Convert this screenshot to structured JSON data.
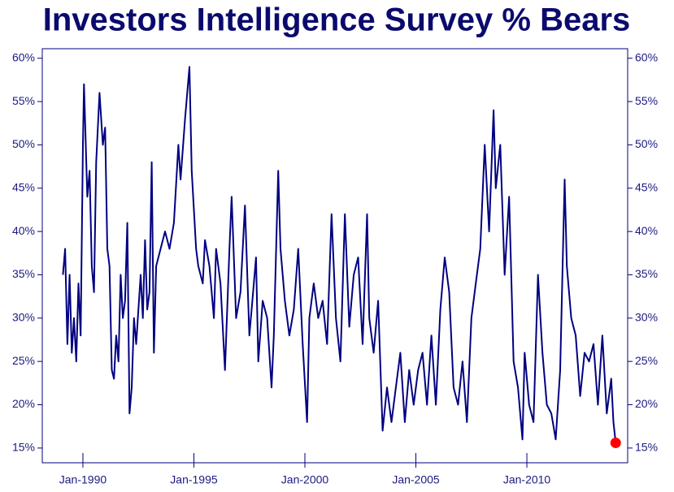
{
  "chart_data": {
    "type": "line",
    "title": "Investors Intelligence Survey % Bears",
    "color": "#000080",
    "last_point_color": "#ff0000",
    "xlim": [
      1988.17,
      2014.54
    ],
    "ylim": [
      13.3,
      61.1
    ],
    "xticks": [
      {
        "value": 1990,
        "label": "Jan-1990"
      },
      {
        "value": 1995,
        "label": "Jan-1995"
      },
      {
        "value": 2000,
        "label": "Jan-2000"
      },
      {
        "value": 2005,
        "label": "Jan-2005"
      },
      {
        "value": 2010,
        "label": "Jan-2010"
      }
    ],
    "yticks": [
      {
        "value": 15,
        "label": "15%"
      },
      {
        "value": 20,
        "label": "20%"
      },
      {
        "value": 25,
        "label": "25%"
      },
      {
        "value": 30,
        "label": "30%"
      },
      {
        "value": 35,
        "label": "35%"
      },
      {
        "value": 40,
        "label": "40%"
      },
      {
        "value": 45,
        "label": "45%"
      },
      {
        "value": 50,
        "label": "50%"
      },
      {
        "value": 55,
        "label": "55%"
      },
      {
        "value": 60,
        "label": "60%"
      }
    ],
    "series": [
      {
        "name": "% Bears",
        "color": "#000080",
        "x": [
          1989.1,
          1989.2,
          1989.3,
          1989.4,
          1989.5,
          1989.6,
          1989.7,
          1989.8,
          1989.9,
          1990.0,
          1990.05,
          1990.2,
          1990.3,
          1990.4,
          1990.5,
          1990.6,
          1990.75,
          1990.9,
          1991.0,
          1991.1,
          1991.2,
          1991.3,
          1991.4,
          1991.5,
          1991.6,
          1991.7,
          1991.8,
          1991.9,
          1992.0,
          1992.1,
          1992.2,
          1992.3,
          1992.4,
          1992.6,
          1992.7,
          1992.8,
          1992.9,
          1993.0,
          1993.1,
          1993.2,
          1993.3,
          1993.5,
          1993.7,
          1993.9,
          1994.1,
          1994.3,
          1994.4,
          1994.6,
          1994.8,
          1994.9,
          1995.1,
          1995.2,
          1995.4,
          1995.5,
          1995.7,
          1995.9,
          1996.0,
          1996.2,
          1996.4,
          1996.6,
          1996.7,
          1996.9,
          1997.1,
          1997.3,
          1997.5,
          1997.6,
          1997.8,
          1997.9,
          1998.1,
          1998.3,
          1998.5,
          1998.6,
          1998.8,
          1998.9,
          1999.1,
          1999.3,
          1999.5,
          1999.7,
          1999.9,
          2000.1,
          2000.2,
          2000.4,
          2000.6,
          2000.8,
          2001.0,
          2001.2,
          2001.4,
          2001.6,
          2001.8,
          2002.0,
          2002.2,
          2002.4,
          2002.6,
          2002.8,
          2002.9,
          2003.1,
          2003.3,
          2003.5,
          2003.7,
          2003.9,
          2004.1,
          2004.3,
          2004.5,
          2004.7,
          2004.9,
          2005.1,
          2005.3,
          2005.5,
          2005.7,
          2005.9,
          2006.1,
          2006.3,
          2006.5,
          2006.7,
          2006.9,
          2007.1,
          2007.3,
          2007.5,
          2007.7,
          2007.9,
          2008.1,
          2008.3,
          2008.5,
          2008.6,
          2008.8,
          2009.0,
          2009.2,
          2009.4,
          2009.6,
          2009.8,
          2009.9,
          2010.1,
          2010.3,
          2010.5,
          2010.7,
          2010.9,
          2011.1,
          2011.3,
          2011.5,
          2011.7,
          2011.8,
          2012.0,
          2012.2,
          2012.4,
          2012.6,
          2012.8,
          2013.0,
          2013.2,
          2013.4,
          2013.6,
          2013.8,
          2013.9,
          2014.0
        ],
        "values": [
          35,
          38,
          27,
          35,
          26,
          30,
          25,
          34,
          28,
          50,
          57,
          44,
          47,
          36,
          33,
          48,
          56,
          50,
          52,
          38,
          36,
          24,
          23,
          28,
          25,
          35,
          30,
          32,
          41,
          19,
          22,
          30,
          27,
          35,
          30,
          39,
          31,
          33,
          48,
          26,
          36,
          38,
          40,
          38,
          41,
          50,
          46,
          53,
          59,
          47,
          38,
          36,
          34,
          39,
          36,
          30,
          38,
          34,
          24,
          38,
          44,
          30,
          33,
          43,
          28,
          31,
          37,
          25,
          32,
          30,
          22,
          28,
          47,
          38,
          32,
          28,
          31,
          38,
          27,
          18,
          30,
          34,
          30,
          32,
          27,
          42,
          30,
          25,
          42,
          29,
          35,
          37,
          27,
          42,
          30,
          26,
          32,
          17,
          22,
          18,
          22,
          26,
          18,
          24,
          20,
          24,
          26,
          20,
          28,
          20,
          31,
          37,
          33,
          22,
          20,
          25,
          18,
          30,
          34,
          38,
          50,
          40,
          54,
          45,
          50,
          35,
          44,
          25,
          22,
          16,
          26,
          20,
          18,
          35,
          26,
          20,
          19,
          16,
          24,
          46,
          36,
          30,
          28,
          21,
          26,
          25,
          27,
          20,
          28,
          19,
          23,
          18,
          15.6
        ]
      }
    ]
  }
}
